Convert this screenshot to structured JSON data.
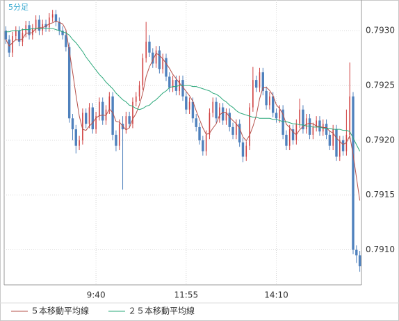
{
  "chart_data": {
    "type": "candlestick",
    "title": "5分足",
    "categories": [
      null,
      null,
      null,
      null,
      null,
      null,
      null,
      null,
      null,
      null,
      null,
      null,
      null,
      null,
      null,
      null,
      null,
      null,
      null,
      null,
      null,
      null,
      null,
      null,
      null,
      null,
      null,
      "9:40",
      null,
      null,
      null,
      null,
      null,
      null,
      null,
      null,
      null,
      null,
      null,
      null,
      null,
      null,
      null,
      null,
      null,
      null,
      null,
      null,
      null,
      null,
      null,
      null,
      null,
      null,
      "11:55",
      null,
      null,
      null,
      null,
      null,
      null,
      null,
      null,
      null,
      null,
      null,
      null,
      null,
      null,
      null,
      null,
      null,
      null,
      null,
      null,
      null,
      null,
      null,
      null,
      null,
      null,
      "14:10",
      null,
      null,
      null,
      null,
      null,
      null,
      null,
      null,
      null,
      null,
      null,
      null,
      null,
      null,
      null,
      null,
      null,
      null,
      null,
      null,
      null,
      null,
      null,
      null,
      null
    ],
    "open": [
      0.793,
      0.79292,
      0.7928,
      0.79295,
      0.793,
      0.7929,
      0.79298,
      0.79305,
      0.79296,
      0.79302,
      0.7931,
      0.793,
      0.79306,
      0.79303,
      0.79312,
      0.79315,
      0.79308,
      0.793,
      0.79296,
      0.79285,
      0.7922,
      0.7921,
      0.79195,
      0.792,
      0.79225,
      0.79215,
      0.7923,
      0.7921,
      0.79222,
      0.79235,
      0.79218,
      0.79228,
      0.7924,
      0.79205,
      0.79195,
      0.79215,
      0.7921,
      0.79222,
      0.79215,
      0.79235,
      0.7924,
      0.7925,
      0.79275,
      0.7929,
      0.7928,
      0.7927,
      0.79282,
      0.79265,
      0.79275,
      0.79258,
      0.79248,
      0.79255,
      0.79245,
      0.79255,
      0.7924,
      0.79228,
      0.79235,
      0.7922,
      0.79212,
      0.792,
      0.7919,
      0.79205,
      0.79225,
      0.79235,
      0.7922,
      0.7923,
      0.79218,
      0.79225,
      0.79212,
      0.79205,
      0.79215,
      0.79198,
      0.79185,
      0.79195,
      0.7923,
      0.79255,
      0.79248,
      0.79262,
      0.79245,
      0.79232,
      0.7924,
      0.79225,
      0.7922,
      0.79228,
      0.79205,
      0.79195,
      0.7921,
      0.792,
      0.79215,
      0.79228,
      0.7921,
      0.7922,
      0.79205,
      0.79212,
      0.79218,
      0.79208,
      0.79215,
      0.79205,
      0.79195,
      0.7921,
      0.79185,
      0.792,
      0.7919,
      0.79205,
      0.7924,
      0.791,
      0.79095
    ],
    "high": [
      0.79304,
      0.79296,
      0.79299,
      0.79304,
      0.79304,
      0.79302,
      0.79309,
      0.79309,
      0.79306,
      0.79314,
      0.79314,
      0.7931,
      0.7931,
      0.79316,
      0.79319,
      0.79319,
      0.79312,
      0.79304,
      0.793,
      0.79289,
      0.79224,
      0.79214,
      0.79204,
      0.79229,
      0.79229,
      0.79234,
      0.79234,
      0.79226,
      0.79239,
      0.79239,
      0.79232,
      0.79244,
      0.79244,
      0.79209,
      0.79219,
      0.79222,
      0.79226,
      0.79226,
      0.79239,
      0.79244,
      0.79254,
      0.79279,
      0.79308,
      0.79296,
      0.79284,
      0.79286,
      0.79286,
      0.79279,
      0.79279,
      0.79262,
      0.79259,
      0.79259,
      0.79259,
      0.79259,
      0.79244,
      0.79239,
      0.79239,
      0.79224,
      0.79216,
      0.79204,
      0.79209,
      0.79229,
      0.79239,
      0.79239,
      0.79234,
      0.79234,
      0.79229,
      0.79229,
      0.79216,
      0.79219,
      0.79219,
      0.79202,
      0.79199,
      0.79234,
      0.79267,
      0.79259,
      0.79266,
      0.79266,
      0.79249,
      0.79244,
      0.79244,
      0.79229,
      0.79232,
      0.79232,
      0.79209,
      0.79214,
      0.79214,
      0.79219,
      0.79238,
      0.79232,
      0.79224,
      0.79224,
      0.79216,
      0.79222,
      0.79222,
      0.79219,
      0.79219,
      0.79209,
      0.79214,
      0.79214,
      0.79204,
      0.79204,
      0.79228,
      0.79271,
      0.79244,
      0.79104,
      0.79099
    ],
    "low": [
      0.79288,
      0.79276,
      0.79276,
      0.79291,
      0.79286,
      0.79286,
      0.79294,
      0.79292,
      0.79292,
      0.79298,
      0.79296,
      0.79296,
      0.79299,
      0.79299,
      0.79308,
      0.79304,
      0.79296,
      0.79292,
      0.79281,
      0.79216,
      0.792,
      0.79188,
      0.79191,
      0.79196,
      0.79211,
      0.79211,
      0.79206,
      0.79206,
      0.79218,
      0.79214,
      0.79214,
      0.79224,
      0.792,
      0.7919,
      0.79191,
      0.79155,
      0.79206,
      0.79211,
      0.79211,
      0.79231,
      0.79236,
      0.79246,
      0.79271,
      0.79276,
      0.79266,
      0.79266,
      0.79261,
      0.79261,
      0.79254,
      0.79244,
      0.79244,
      0.79241,
      0.79241,
      0.79236,
      0.79224,
      0.79224,
      0.79216,
      0.79208,
      0.79196,
      0.79186,
      0.79186,
      0.79201,
      0.79221,
      0.79216,
      0.79216,
      0.79214,
      0.79214,
      0.79208,
      0.79201,
      0.79201,
      0.79194,
      0.7918,
      0.79181,
      0.79191,
      0.79226,
      0.79244,
      0.79244,
      0.79241,
      0.79228,
      0.79228,
      0.79221,
      0.79216,
      0.79216,
      0.79201,
      0.79191,
      0.79191,
      0.79196,
      0.79196,
      0.79211,
      0.79206,
      0.79206,
      0.79201,
      0.79201,
      0.79208,
      0.79204,
      0.79204,
      0.79201,
      0.79191,
      0.79191,
      0.79181,
      0.79181,
      0.79186,
      0.79186,
      0.79201,
      0.79096,
      0.79088,
      0.7908
    ],
    "close": [
      0.79292,
      0.7928,
      0.79295,
      0.793,
      0.7929,
      0.79298,
      0.79305,
      0.79296,
      0.79302,
      0.7931,
      0.793,
      0.79306,
      0.79303,
      0.79312,
      0.79315,
      0.79308,
      0.793,
      0.79296,
      0.79285,
      0.7922,
      0.7921,
      0.79195,
      0.792,
      0.79225,
      0.79215,
      0.7923,
      0.7921,
      0.79222,
      0.79235,
      0.79218,
      0.79228,
      0.7924,
      0.79205,
      0.79195,
      0.79215,
      0.7921,
      0.79222,
      0.79215,
      0.79235,
      0.7924,
      0.7925,
      0.79275,
      0.7929,
      0.7928,
      0.7927,
      0.79282,
      0.79265,
      0.79275,
      0.79258,
      0.79248,
      0.79255,
      0.79245,
      0.79255,
      0.7924,
      0.79228,
      0.79235,
      0.7922,
      0.79212,
      0.792,
      0.7919,
      0.79205,
      0.79225,
      0.79235,
      0.7922,
      0.7923,
      0.79218,
      0.79225,
      0.79212,
      0.79205,
      0.79215,
      0.79198,
      0.79185,
      0.79195,
      0.7923,
      0.79255,
      0.79248,
      0.79262,
      0.79245,
      0.79232,
      0.7924,
      0.79225,
      0.7922,
      0.79228,
      0.79205,
      0.79195,
      0.7921,
      0.792,
      0.79215,
      0.79228,
      0.7921,
      0.7922,
      0.79205,
      0.79212,
      0.79218,
      0.79208,
      0.79215,
      0.79205,
      0.79195,
      0.7921,
      0.79185,
      0.792,
      0.7919,
      0.79205,
      0.7924,
      0.791,
      0.79095,
      0.79085
    ],
    "up_color": "#d04040",
    "down_color": "#4f81bd",
    "series": [
      {
        "name": "５本移動平均線",
        "color": "#b5504a",
        "values": [
          0.79292,
          0.79286,
          0.79289,
          0.79292,
          0.792914,
          0.792926,
          0.792976,
          0.792978,
          0.792982,
          0.793022,
          0.793026,
          0.793028,
          0.793042,
          0.793062,
          0.793072,
          0.793088,
          0.793076,
          0.793062,
          0.793008,
          0.792818,
          0.792622,
          0.792412,
          0.79222,
          0.7921,
          0.79209,
          0.79213,
          0.79216,
          0.792204,
          0.792224,
          0.79223,
          0.792226,
          0.792286,
          0.792252,
          0.792172,
          0.792166,
          0.79213,
          0.792094,
          0.792114,
          0.792194,
          0.792244,
          0.792324,
          0.79243,
          0.79258,
          0.79267,
          0.79273,
          0.792794,
          0.792774,
          0.792744,
          0.7927,
          0.792656,
          0.792602,
          0.792562,
          0.792522,
          0.792486,
          0.792446,
          0.792406,
          0.792356,
          0.79227,
          0.79219,
          0.792114,
          0.792054,
          0.792064,
          0.79211,
          0.79215,
          0.79223,
          0.792256,
          0.792256,
          0.79221,
          0.79218,
          0.79215,
          0.79211,
          0.79203,
          0.791996,
          0.792046,
          0.792126,
          0.792226,
          0.79238,
          0.79248,
          0.792484,
          0.792454,
          0.792408,
          0.792324,
          0.79229,
          0.792236,
          0.792146,
          0.792116,
          0.792076,
          0.79205,
          0.792096,
          0.792126,
          0.792146,
          0.792156,
          0.79215,
          0.79213,
          0.792126,
          0.792116,
          0.792116,
          0.792082,
          0.792066,
          0.79202,
          0.79199,
          0.79196,
          0.79198,
          0.79204,
          0.79187,
          0.79166,
          0.79145
        ]
      },
      {
        "name": "２５本移動平均線",
        "color": "#2aa87a",
        "values": [
          0.79299,
          0.79299,
          0.793,
          0.793,
          0.793,
          0.79301,
          0.79301,
          0.79301,
          0.79302,
          0.79302,
          0.79302,
          0.79302,
          0.79302,
          0.79302,
          0.79302,
          0.79301,
          0.793,
          0.79299,
          0.79298,
          0.79296,
          0.79292,
          0.79289,
          0.79285,
          0.79281,
          0.79276,
          0.79272,
          0.79268,
          0.79264,
          0.7926,
          0.79257,
          0.79253,
          0.7925,
          0.79247,
          0.79243,
          0.7924,
          0.79237,
          0.79235,
          0.79232,
          0.79231,
          0.79229,
          0.79228,
          0.79229,
          0.79231,
          0.79232,
          0.79235,
          0.79237,
          0.7924,
          0.79243,
          0.79245,
          0.79248,
          0.79249,
          0.79249,
          0.7925,
          0.7925,
          0.7925,
          0.7925,
          0.79249,
          0.79249,
          0.79248,
          0.79247,
          0.79246,
          0.79245,
          0.79243,
          0.79242,
          0.7924,
          0.79237,
          0.79235,
          0.79232,
          0.7923,
          0.79227,
          0.79225,
          0.79224,
          0.79223,
          0.79222,
          0.79221,
          0.79221,
          0.7922,
          0.7922,
          0.7922,
          0.7922,
          0.79219,
          0.79219,
          0.79218,
          0.79217,
          0.79217,
          0.79216,
          0.79215,
          0.79215,
          0.79214,
          0.79214,
          0.79213,
          0.79213,
          0.79212,
          0.79212,
          0.79212,
          0.79211,
          0.79211,
          0.79211,
          0.7921,
          0.7921,
          0.7921,
          0.79209,
          0.79209,
          0.79208,
          0.79202,
          0.79196,
          0.7919
        ]
      }
    ],
    "ylim": [
      0.79068,
      0.79328
    ],
    "yticks": [
      {
        "value": 0.791,
        "label": "0.7910"
      },
      0.7915,
      {
        "value": 0.792,
        "label": "0.7920"
      },
      0.7925,
      {
        "value": 0.793,
        "label": "0.7930"
      }
    ],
    "grid": true
  }
}
